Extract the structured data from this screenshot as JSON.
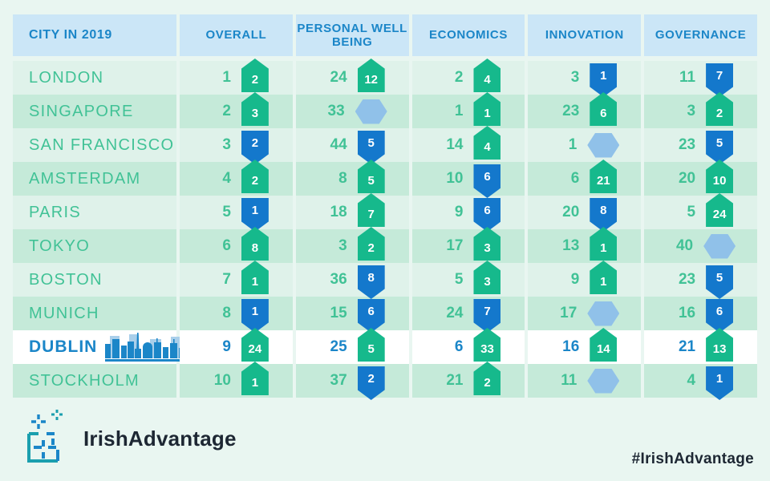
{
  "page": {
    "background": "#e9f6f1",
    "colors": {
      "header_bg": "#cbe6f7",
      "header_text": "#1b86c8",
      "row_light": "#dff2ea",
      "row_dark": "#c5ead9",
      "highlight_row_bg": "#ffffff",
      "city_text": "#41c296",
      "highlight_city_text": "#1b86c8",
      "badge_up": "#16b98c",
      "badge_down": "#1478cc",
      "badge_neutral": "#90c1e9"
    }
  },
  "table": {
    "header": {
      "columns": [
        "CITY IN 2019",
        "OVERALL",
        "PERSONAL WELL BEING",
        "ECONOMICS",
        "INNOVATION",
        "GOVERNANCE"
      ]
    },
    "rows": [
      {
        "city": "LONDON",
        "highlight": false,
        "cells": [
          {
            "rank": "1",
            "change": "2",
            "dir": "up"
          },
          {
            "rank": "24",
            "change": "12",
            "dir": "up"
          },
          {
            "rank": "2",
            "change": "4",
            "dir": "up"
          },
          {
            "rank": "3",
            "change": "1",
            "dir": "down"
          },
          {
            "rank": "11",
            "change": "7",
            "dir": "down"
          }
        ]
      },
      {
        "city": "SINGAPORE",
        "highlight": false,
        "cells": [
          {
            "rank": "2",
            "change": "3",
            "dir": "up"
          },
          {
            "rank": "33",
            "change": "",
            "dir": "neutral"
          },
          {
            "rank": "1",
            "change": "1",
            "dir": "up"
          },
          {
            "rank": "23",
            "change": "6",
            "dir": "up"
          },
          {
            "rank": "3",
            "change": "2",
            "dir": "up"
          }
        ]
      },
      {
        "city": "SAN FRANCISCO",
        "highlight": false,
        "cells": [
          {
            "rank": "3",
            "change": "2",
            "dir": "down"
          },
          {
            "rank": "44",
            "change": "5",
            "dir": "down"
          },
          {
            "rank": "14",
            "change": "4",
            "dir": "up"
          },
          {
            "rank": "1",
            "change": "",
            "dir": "neutral"
          },
          {
            "rank": "23",
            "change": "5",
            "dir": "down"
          }
        ]
      },
      {
        "city": "AMSTERDAM",
        "highlight": false,
        "cells": [
          {
            "rank": "4",
            "change": "2",
            "dir": "up"
          },
          {
            "rank": "8",
            "change": "5",
            "dir": "up"
          },
          {
            "rank": "10",
            "change": "6",
            "dir": "down"
          },
          {
            "rank": "6",
            "change": "21",
            "dir": "up"
          },
          {
            "rank": "20",
            "change": "10",
            "dir": "up"
          }
        ]
      },
      {
        "city": "PARIS",
        "highlight": false,
        "cells": [
          {
            "rank": "5",
            "change": "1",
            "dir": "down"
          },
          {
            "rank": "18",
            "change": "7",
            "dir": "up"
          },
          {
            "rank": "9",
            "change": "6",
            "dir": "down"
          },
          {
            "rank": "20",
            "change": "8",
            "dir": "down"
          },
          {
            "rank": "5",
            "change": "24",
            "dir": "up"
          }
        ]
      },
      {
        "city": "TOKYO",
        "highlight": false,
        "cells": [
          {
            "rank": "6",
            "change": "8",
            "dir": "up"
          },
          {
            "rank": "3",
            "change": "2",
            "dir": "up"
          },
          {
            "rank": "17",
            "change": "3",
            "dir": "up"
          },
          {
            "rank": "13",
            "change": "1",
            "dir": "up"
          },
          {
            "rank": "40",
            "change": "",
            "dir": "neutral"
          }
        ]
      },
      {
        "city": "BOSTON",
        "highlight": false,
        "cells": [
          {
            "rank": "7",
            "change": "1",
            "dir": "up"
          },
          {
            "rank": "36",
            "change": "8",
            "dir": "down"
          },
          {
            "rank": "5",
            "change": "3",
            "dir": "up"
          },
          {
            "rank": "9",
            "change": "1",
            "dir": "up"
          },
          {
            "rank": "23",
            "change": "5",
            "dir": "down"
          }
        ]
      },
      {
        "city": "MUNICH",
        "highlight": false,
        "cells": [
          {
            "rank": "8",
            "change": "1",
            "dir": "down"
          },
          {
            "rank": "15",
            "change": "6",
            "dir": "down"
          },
          {
            "rank": "24",
            "change": "7",
            "dir": "down"
          },
          {
            "rank": "17",
            "change": "",
            "dir": "neutral"
          },
          {
            "rank": "16",
            "change": "6",
            "dir": "down"
          }
        ]
      },
      {
        "city": "DUBLIN",
        "highlight": true,
        "cells": [
          {
            "rank": "9",
            "change": "24",
            "dir": "up"
          },
          {
            "rank": "25",
            "change": "5",
            "dir": "up"
          },
          {
            "rank": "6",
            "change": "33",
            "dir": "up"
          },
          {
            "rank": "16",
            "change": "14",
            "dir": "up"
          },
          {
            "rank": "21",
            "change": "13",
            "dir": "up"
          }
        ]
      },
      {
        "city": "STOCKHOLM",
        "highlight": false,
        "cells": [
          {
            "rank": "10",
            "change": "1",
            "dir": "up"
          },
          {
            "rank": "37",
            "change": "2",
            "dir": "down"
          },
          {
            "rank": "21",
            "change": "2",
            "dir": "up"
          },
          {
            "rank": "11",
            "change": "",
            "dir": "neutral"
          },
          {
            "rank": "4",
            "change": "1",
            "dir": "down"
          }
        ]
      }
    ]
  },
  "footer": {
    "brand": "IrishAdvantage",
    "hashtag": "#IrishAdvantage"
  }
}
